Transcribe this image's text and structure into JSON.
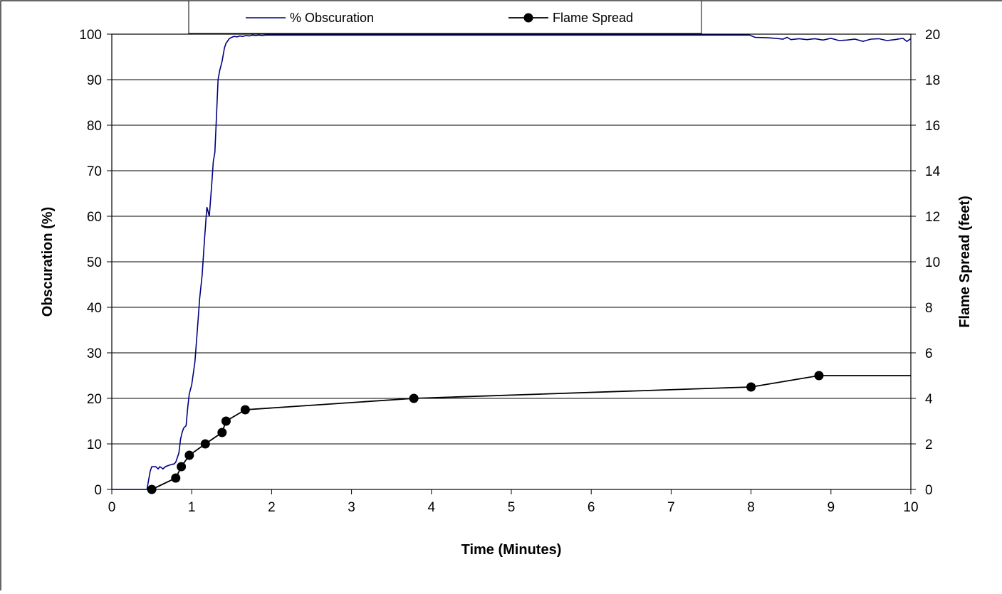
{
  "chart_data": {
    "type": "line",
    "title": "",
    "xlabel": "Time (Minutes)",
    "ylabel_left": "Obscuration (%)",
    "ylabel_right": "Flame Spread (feet)",
    "xlim": [
      0,
      10
    ],
    "ylim_left": [
      0,
      100
    ],
    "ylim_right": [
      0,
      20
    ],
    "x_ticks": [
      "0",
      "1",
      "2",
      "3",
      "4",
      "5",
      "6",
      "7",
      "8",
      "9",
      "10"
    ],
    "y_left_ticks": [
      "0",
      "10",
      "20",
      "30",
      "40",
      "50",
      "60",
      "70",
      "80",
      "90",
      "100"
    ],
    "y_right_ticks": [
      "0",
      "2",
      "4",
      "6",
      "8",
      "10",
      "12",
      "14",
      "16",
      "18",
      "20"
    ],
    "grid": "horizontal",
    "legend_position": "top",
    "series": [
      {
        "name": "% Obscuration",
        "axis": "left",
        "color": "#000080",
        "marker": "none",
        "x": [
          0,
          0.44,
          0.46,
          0.48,
          0.5,
          0.52,
          0.55,
          0.58,
          0.6,
          0.62,
          0.64,
          0.67,
          0.7,
          0.75,
          0.78,
          0.8,
          0.82,
          0.84,
          0.86,
          0.88,
          0.9,
          0.93,
          0.95,
          0.97,
          1.0,
          1.04,
          1.07,
          1.1,
          1.13,
          1.16,
          1.19,
          1.22,
          1.25,
          1.27,
          1.29,
          1.31,
          1.33,
          1.35,
          1.38,
          1.41,
          1.43,
          1.45,
          1.47,
          1.5,
          1.53,
          1.57,
          1.6,
          1.64,
          1.68,
          1.72,
          1.76,
          1.8,
          1.84,
          1.88,
          1.92,
          1.96,
          2.0,
          2.1,
          2.3,
          3.0,
          4.0,
          5.0,
          6.0,
          7.0,
          7.98,
          8.05,
          8.2,
          8.3,
          8.4,
          8.45,
          8.5,
          8.6,
          8.7,
          8.8,
          8.9,
          9.0,
          9.1,
          9.2,
          9.3,
          9.4,
          9.5,
          9.6,
          9.7,
          9.8,
          9.9,
          9.95,
          10.0
        ],
        "y": [
          0,
          0,
          2,
          4,
          5,
          5,
          5,
          4.5,
          5,
          4.8,
          4.5,
          5,
          5.2,
          5.5,
          5.6,
          6,
          7,
          8,
          11,
          12.5,
          13.5,
          14,
          18,
          21,
          23,
          28,
          35,
          42,
          47,
          55,
          62,
          60,
          67,
          72,
          74,
          82,
          90,
          92,
          94,
          97,
          98,
          98.5,
          99,
          99.3,
          99.5,
          99.4,
          99.6,
          99.5,
          99.7,
          99.6,
          99.8,
          99.7,
          99.8,
          99.7,
          99.8,
          99.8,
          99.8,
          99.8,
          99.8,
          99.8,
          99.8,
          99.8,
          99.8,
          99.8,
          99.8,
          99.3,
          99.2,
          99.1,
          98.9,
          99.3,
          98.8,
          99.0,
          98.8,
          99.0,
          98.7,
          99.1,
          98.6,
          98.7,
          98.9,
          98.4,
          98.9,
          99.0,
          98.6,
          98.8,
          99.1,
          98.4,
          99.0
        ]
      },
      {
        "name": "Flame Spread",
        "axis": "right",
        "color": "#000000",
        "marker": "circle",
        "x": [
          0.5,
          0.8,
          0.87,
          0.97,
          1.17,
          1.38,
          1.43,
          1.67,
          3.78,
          8.0,
          8.85,
          10.0
        ],
        "y": [
          0,
          0.5,
          1.0,
          1.5,
          2.0,
          2.5,
          3.0,
          3.5,
          4.0,
          4.5,
          5.0,
          5.0
        ],
        "marker_points": 11
      }
    ]
  }
}
